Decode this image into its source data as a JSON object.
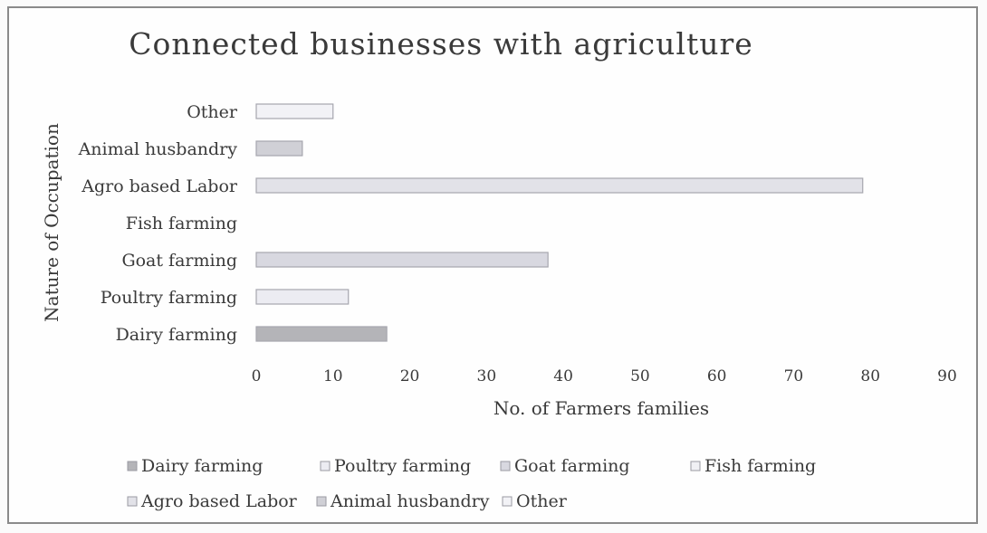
{
  "chart_data": {
    "type": "bar",
    "orientation": "horizontal",
    "title": "Connected businesses with agriculture",
    "xlabel": "No. of Farmers families",
    "ylabel": "Nature of Occupation",
    "xlim": [
      0,
      90
    ],
    "x_ticks": [
      0,
      10,
      20,
      30,
      40,
      50,
      60,
      70,
      80,
      90
    ],
    "grid": false,
    "legend_position": "bottom",
    "categories": [
      "Dairy farming",
      "Poultry farming",
      "Goat farming",
      "Fish farming",
      "Agro based Labor",
      "Animal husbandry",
      "Other"
    ],
    "values": [
      17,
      12,
      38,
      0,
      79,
      6,
      10
    ],
    "legend": [
      "Dairy farming",
      "Poultry farming",
      "Goat farming",
      "Fish farming",
      "Agro based Labor",
      "Animal husbandry",
      "Other"
    ],
    "colors": [
      "#b4b4b8",
      "#ececf2",
      "#d8d8e0",
      "#f0f0f4",
      "#e2e2e8",
      "#d0d0d6",
      "#f2f2f6"
    ]
  }
}
